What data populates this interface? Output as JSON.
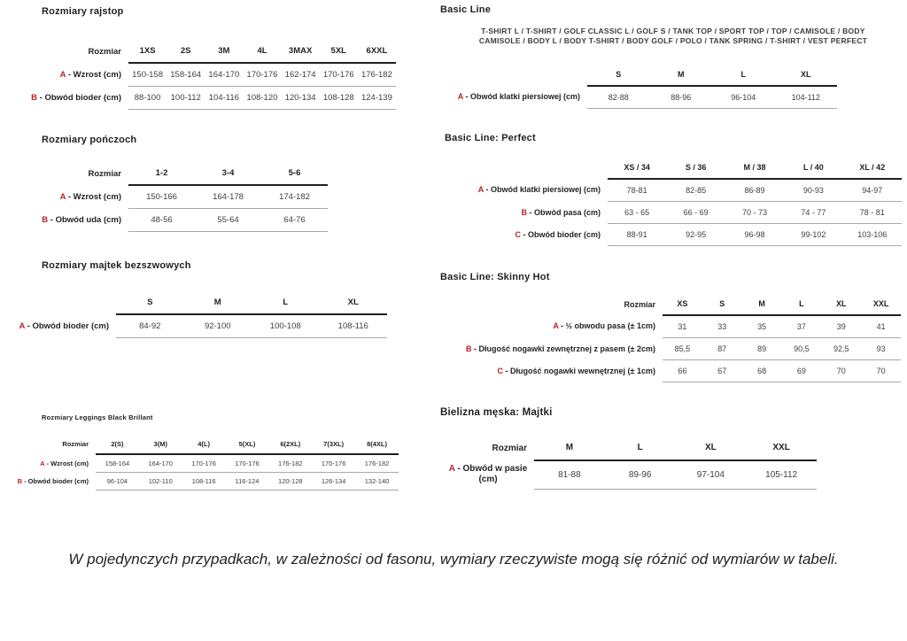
{
  "colors": {
    "accent_red": "#c01f27",
    "heading_text": "#231f20",
    "value_text": "#414042",
    "thick_rule": "#231f20",
    "thin_rule": "#a9a9a9"
  },
  "sections": {
    "rajstop": {
      "heading": "Rozmiary rajstop",
      "table": {
        "corner": "Rozmiar",
        "columns": [
          "1XS",
          "2S",
          "3M",
          "4L",
          "3MAX",
          "5XL",
          "6XXL"
        ],
        "rows": [
          {
            "letter": "A",
            "label": "Wzrost (cm)",
            "values": [
              "150-158",
              "158-164",
              "164-170",
              "170-176",
              "162-174",
              "170-176",
              "176-182"
            ]
          },
          {
            "letter": "B",
            "label": "Obwód bioder (cm)",
            "values": [
              "88-100",
              "100-112",
              "104-116",
              "108-120",
              "120-134",
              "108-128",
              "124-139"
            ]
          }
        ]
      }
    },
    "ponczochy": {
      "heading": "Rozmiary pończoch",
      "table": {
        "corner": "Rozmiar",
        "columns": [
          "1-2",
          "3-4",
          "5-6"
        ],
        "rows": [
          {
            "letter": "A",
            "label": "Wzrost (cm)",
            "values": [
              "150-166",
              "164-178",
              "174-182"
            ]
          },
          {
            "letter": "B",
            "label": "Obwód uda (cm)",
            "values": [
              "48-56",
              "55-64",
              "64-76"
            ]
          }
        ]
      }
    },
    "majtki_bezszwowe": {
      "heading": "Rozmiary majtek bezszwowych",
      "table": {
        "corner": "",
        "columns": [
          "S",
          "M",
          "L",
          "XL"
        ],
        "rows": [
          {
            "letter": "A",
            "label": "Obwód bioder (cm)",
            "values": [
              "84-92",
              "92-100",
              "100-108",
              "108-116"
            ]
          }
        ]
      }
    },
    "leggings": {
      "heading": "Rozmiary Leggings Black Brillant",
      "table": {
        "corner": "Rozmiar",
        "columns": [
          "2(S)",
          "3(M)",
          "4(L)",
          "5(XL)",
          "6(2XL)",
          "7(3XL)",
          "8(4XL)"
        ],
        "rows": [
          {
            "letter": "A",
            "label": "Wzrost (cm)",
            "values": [
              "158-164",
              "164-170",
              "170-176",
              "170-176",
              "176-182",
              "170-176",
              "176-182"
            ]
          },
          {
            "letter": "B",
            "label": "Obwód bioder (cm)",
            "values": [
              "96-104",
              "102-110",
              "108-116",
              "116-124",
              "120-128",
              "126-134",
              "132-140"
            ]
          }
        ]
      }
    },
    "basic_line": {
      "heading": "Basic Line",
      "products_line1": "T-SHIRT L / T-SHIRT / GOLF CLASSIC L / GOLF S / TANK TOP / SPORT TOP / TOP / CAMISOLE / BODY",
      "products_line2": "CAMISOLE / BODY L / BODY T-SHIRT / BODY GOLF / POLO / TANK SPRING / T-SHIRT / VEST PERFECT",
      "table": {
        "corner": "",
        "columns": [
          "S",
          "M",
          "L",
          "XL"
        ],
        "rows": [
          {
            "letter": "A",
            "label": "Obwód klatki piersiowej (cm)",
            "values": [
              "82-88",
              "88-96",
              "96-104",
              "104-112"
            ]
          }
        ]
      }
    },
    "perfect": {
      "heading": "Basic Line: Perfect",
      "table": {
        "corner": "",
        "columns": [
          "XS / 34",
          "S / 36",
          "M / 38",
          "L / 40",
          "XL / 42"
        ],
        "rows": [
          {
            "letter": "A",
            "label": "Obwód klatki piersiowej (cm)",
            "values": [
              "78-81",
              "82-85",
              "86-89",
              "90-93",
              "94-97"
            ]
          },
          {
            "letter": "B",
            "label": "Obwód pasa (cm)",
            "values": [
              "63 - 65",
              "66 - 69",
              "70 - 73",
              "74 - 77",
              "78 - 81"
            ]
          },
          {
            "letter": "C",
            "label": "Obwód bioder (cm)",
            "values": [
              "88-91",
              "92-95",
              "96-98",
              "99-102",
              "103-106"
            ]
          }
        ]
      }
    },
    "skinny_hot": {
      "heading": "Basic Line: Skinny Hot",
      "table": {
        "corner": "Rozmiar",
        "columns": [
          "XS",
          "S",
          "M",
          "L",
          "XL",
          "XXL"
        ],
        "rows": [
          {
            "letter": "A",
            "label": "½ obwodu pasa (± 1cm)",
            "values": [
              "31",
              "33",
              "35",
              "37",
              "39",
              "41"
            ]
          },
          {
            "letter": "B",
            "label": "Długość nogawki zewnętrznej z pasem (± 2cm)",
            "values": [
              "85,5",
              "87",
              "89",
              "90,5",
              "92,5",
              "93"
            ]
          },
          {
            "letter": "C",
            "label": "Długość nogawki wewnętrznej (± 1cm)",
            "values": [
              "66",
              "67",
              "68",
              "69",
              "70",
              "70"
            ]
          }
        ]
      }
    },
    "bielizna_meska": {
      "heading": "Bielizna męska: Majtki",
      "table": {
        "corner": "Rozmiar",
        "columns": [
          "M",
          "L",
          "XL",
          "XXL"
        ],
        "rows": [
          {
            "letter": "A",
            "label": "Obwód w pasie (cm)",
            "values": [
              "81-88",
              "89-96",
              "97-104",
              "105-112"
            ]
          }
        ]
      }
    }
  },
  "footer": {
    "note": "W pojedynczych przypadkach, w zależności od fasonu, wymiary rzeczywiste mogą się różnić od wymiarów w tabeli."
  }
}
